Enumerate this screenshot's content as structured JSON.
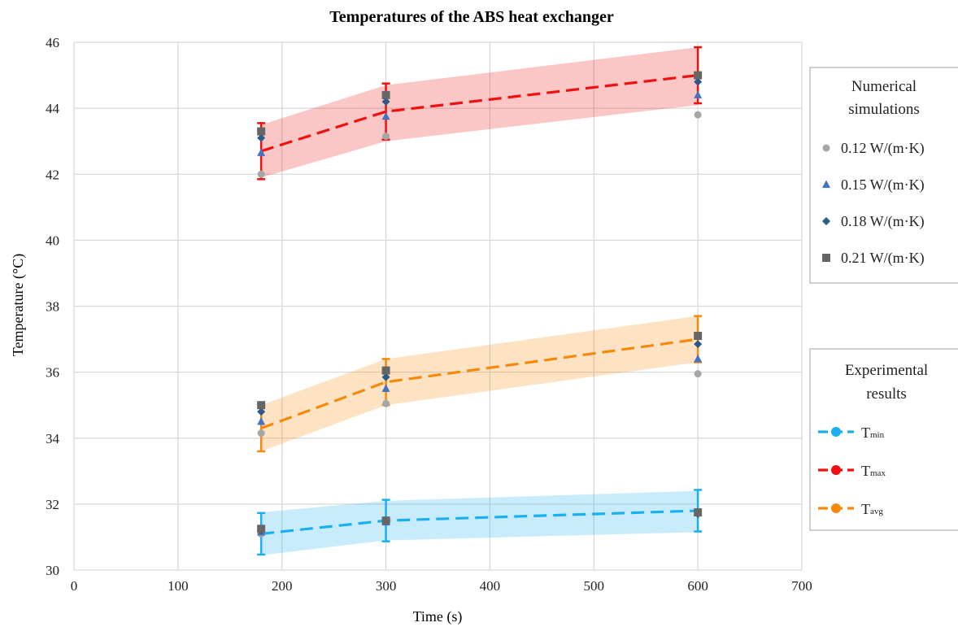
{
  "chart_data": {
    "type": "line",
    "title": "Temperatures of the ABS heat exchanger",
    "xlabel": "Time (s)",
    "ylabel": "Temperature (°C)",
    "xlim": [
      0,
      700
    ],
    "ylim": [
      30,
      46
    ],
    "xticks": [
      0,
      100,
      200,
      300,
      400,
      500,
      600,
      700
    ],
    "yticks": [
      30,
      32,
      34,
      36,
      38,
      40,
      42,
      44,
      46
    ],
    "x": [
      180,
      300,
      600
    ],
    "grid": true,
    "experimental": {
      "legend_title": [
        "Experimental",
        "results"
      ],
      "series": [
        {
          "name": "T",
          "sub": "min",
          "color": "#1ab0f0",
          "values": [
            31.1,
            31.5,
            31.8
          ],
          "error": [
            0.63,
            0.63,
            0.63
          ],
          "band": [
            [
              30.45,
              31.75
            ],
            [
              30.9,
              32.1
            ],
            [
              31.15,
              32.4
            ]
          ]
        },
        {
          "name": "T",
          "sub": "max",
          "color": "#f01010",
          "values": [
            42.7,
            43.9,
            45.0
          ],
          "error": [
            0.85,
            0.85,
            0.85
          ],
          "band": [
            [
              41.9,
              43.5
            ],
            [
              43.0,
              44.7
            ],
            [
              44.1,
              45.85
            ]
          ]
        },
        {
          "name": "T",
          "sub": "avg",
          "color": "#f58a0a",
          "values": [
            34.3,
            35.7,
            37.0
          ],
          "error": [
            0.7,
            0.7,
            0.7
          ],
          "band": [
            [
              33.6,
              35.0
            ],
            [
              35.0,
              36.4
            ],
            [
              36.3,
              37.7
            ]
          ]
        }
      ]
    },
    "simulations": {
      "legend_title": [
        "Numerical",
        "simulations"
      ],
      "series": [
        {
          "name": "0.12 W/(m·K)",
          "marker": "circle",
          "color": "#a6a6a6",
          "values": [
            42.0,
            43.15,
            43.8,
            34.15,
            35.05,
            35.95,
            31.1,
            31.45,
            31.75
          ]
        },
        {
          "name": "0.15 W/(m·K)",
          "marker": "triangle",
          "color": "#4472c4",
          "values": [
            42.65,
            43.75,
            44.4,
            34.5,
            35.5,
            36.4,
            31.15,
            31.45,
            31.75
          ]
        },
        {
          "name": "0.18 W/(m·K)",
          "marker": "diamond",
          "color": "#2e5a8a",
          "values": [
            43.1,
            44.2,
            44.8,
            34.8,
            35.85,
            36.85,
            31.2,
            31.5,
            31.7
          ]
        },
        {
          "name": "0.21 W/(m·K)",
          "marker": "square",
          "color": "#666666",
          "values": [
            43.3,
            44.4,
            45.0,
            35.0,
            36.05,
            37.1,
            31.25,
            31.5,
            31.75
          ]
        }
      ],
      "x": [
        180,
        300,
        600,
        180,
        300,
        600,
        180,
        300,
        600
      ]
    }
  }
}
